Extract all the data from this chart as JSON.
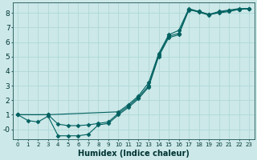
{
  "xlabel": "Humidex (Indice chaleur)",
  "xlim": [
    -0.5,
    23.5
  ],
  "ylim": [
    -0.7,
    8.7
  ],
  "xticks": [
    0,
    1,
    2,
    3,
    4,
    5,
    6,
    7,
    8,
    9,
    10,
    11,
    12,
    13,
    14,
    15,
    16,
    17,
    18,
    19,
    20,
    21,
    22,
    23
  ],
  "yticks": [
    0,
    1,
    2,
    3,
    4,
    5,
    6,
    7,
    8
  ],
  "ytick_labels": [
    "-0",
    "1",
    "2",
    "3",
    "4",
    "5",
    "6",
    "7",
    "8"
  ],
  "bg_color": "#cce8e8",
  "line_color": "#006060",
  "grid_color": "#b0d8d8",
  "line1_x": [
    0,
    1,
    2,
    3,
    4,
    5,
    6,
    7,
    8,
    9,
    10,
    11,
    12,
    13,
    14,
    15,
    16,
    17,
    18,
    19,
    20,
    21,
    22,
    23
  ],
  "line1_y": [
    1.0,
    0.6,
    0.5,
    0.9,
    -0.45,
    -0.45,
    -0.45,
    -0.35,
    0.3,
    0.4,
    1.0,
    1.5,
    2.1,
    2.9,
    5.0,
    6.3,
    6.5,
    8.2,
    8.1,
    7.9,
    8.1,
    8.2,
    8.3,
    8.3
  ],
  "line2_x": [
    0,
    3,
    10,
    11,
    12,
    13,
    14,
    15,
    16,
    17,
    18,
    19,
    20,
    21,
    22,
    23
  ],
  "line2_y": [
    1.0,
    1.0,
    1.2,
    1.7,
    2.3,
    3.2,
    5.2,
    6.5,
    6.8,
    8.3,
    8.1,
    7.9,
    8.0,
    8.1,
    8.25,
    8.3
  ],
  "line3_x": [
    0,
    3,
    4,
    5,
    6,
    7,
    8,
    9,
    10,
    11,
    12,
    13,
    14,
    15,
    16,
    17,
    18,
    19,
    20,
    21,
    22,
    23
  ],
  "line3_y": [
    1.0,
    1.0,
    0.35,
    0.25,
    0.25,
    0.3,
    0.4,
    0.5,
    1.1,
    1.6,
    2.2,
    3.0,
    5.1,
    6.4,
    6.6,
    8.25,
    8.05,
    7.85,
    8.05,
    8.15,
    8.25,
    8.3
  ]
}
